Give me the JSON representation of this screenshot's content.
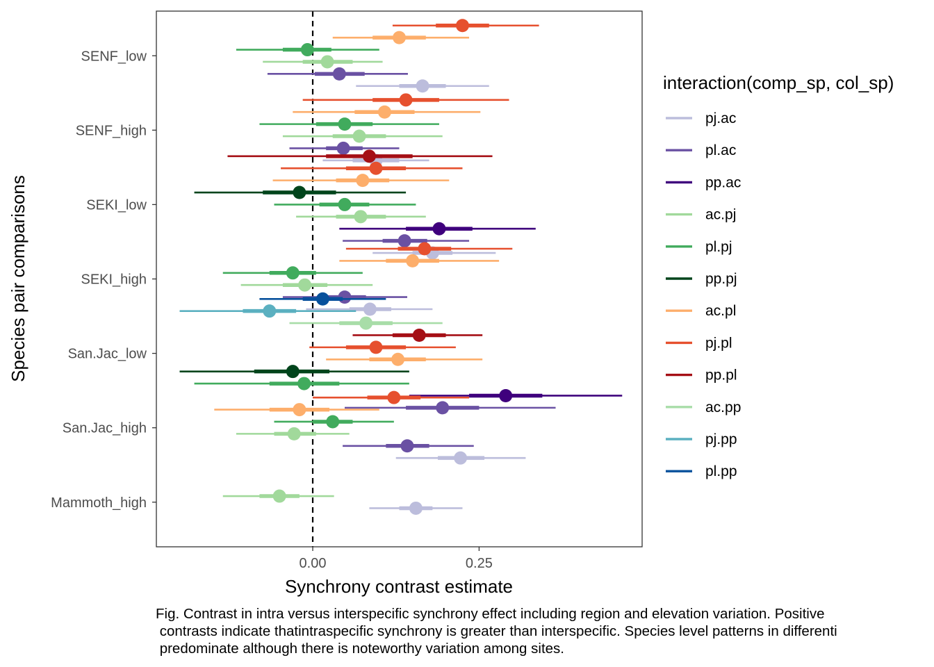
{
  "chart_data": {
    "type": "interval",
    "xlabel": "Synchrony contrast estimate",
    "ylabel": "Species pair comparisons",
    "xlim": [
      -0.235,
      0.495
    ],
    "x_ticks": [
      0.0,
      0.25
    ],
    "x_tick_labels": [
      "0.00",
      "0.25"
    ],
    "reference_line": {
      "x": 0,
      "style": "dashed"
    },
    "categories": [
      "SENF_low",
      "SENF_high",
      "SEKI_low",
      "SEKI_high",
      "San.Jac_low",
      "San.Jac_high",
      "Mammoth_high"
    ],
    "legend": {
      "title": "interaction(comp_sp, col_sp)",
      "placement": "right",
      "entries": [
        {
          "label": "pj.ac",
          "color": "#bcbddc"
        },
        {
          "label": "pl.ac",
          "color": "#6a51a3"
        },
        {
          "label": "pp.ac",
          "color": "#3f007d"
        },
        {
          "label": "ac.pj",
          "color": "#a1d99b"
        },
        {
          "label": "pl.pj",
          "color": "#41ab5d"
        },
        {
          "label": "pp.pj",
          "color": "#00441b"
        },
        {
          "label": "ac.pl",
          "color": "#fdae6b"
        },
        {
          "label": "pj.pl",
          "color": "#e6502e"
        },
        {
          "label": "pp.pl",
          "color": "#a50f15"
        },
        {
          "label": "ac.pp",
          "color": "#a8dda8"
        },
        {
          "label": "pj.pp",
          "color": "#5bb0c0"
        },
        {
          "label": "pl.pp",
          "color": "#08519c"
        }
      ]
    },
    "series": [
      {
        "category": "SENF_low",
        "group": "pj.pl",
        "estimate": 0.225,
        "inner": [
          0.185,
          0.265
        ],
        "outer": [
          0.12,
          0.34
        ]
      },
      {
        "category": "SENF_low",
        "group": "ac.pl",
        "estimate": 0.13,
        "inner": [
          0.09,
          0.17
        ],
        "outer": [
          0.03,
          0.235
        ]
      },
      {
        "category": "SENF_low",
        "group": "pl.pj",
        "estimate": -0.008,
        "inner": [
          -0.045,
          0.028
        ],
        "outer": [
          -0.115,
          0.1
        ]
      },
      {
        "category": "SENF_low",
        "group": "ac.pj",
        "estimate": 0.022,
        "inner": [
          -0.015,
          0.06
        ],
        "outer": [
          -0.075,
          0.105
        ]
      },
      {
        "category": "SENF_low",
        "group": "pl.ac",
        "estimate": 0.04,
        "inner": [
          0.003,
          0.078
        ],
        "outer": [
          -0.068,
          0.143
        ]
      },
      {
        "category": "SENF_low",
        "group": "pj.ac",
        "estimate": 0.165,
        "inner": [
          0.13,
          0.2
        ],
        "outer": [
          0.065,
          0.265
        ]
      },
      {
        "category": "SENF_high",
        "group": "pj.pl",
        "estimate": 0.14,
        "inner": [
          0.09,
          0.19
        ],
        "outer": [
          -0.015,
          0.295
        ]
      },
      {
        "category": "SENF_high",
        "group": "ac.pl",
        "estimate": 0.108,
        "inner": [
          0.063,
          0.153
        ],
        "outer": [
          -0.03,
          0.252
        ]
      },
      {
        "category": "SENF_high",
        "group": "pl.pj",
        "estimate": 0.048,
        "inner": [
          0.005,
          0.09
        ],
        "outer": [
          -0.08,
          0.19
        ]
      },
      {
        "category": "SENF_high",
        "group": "ac.pj",
        "estimate": 0.07,
        "inner": [
          0.03,
          0.11
        ],
        "outer": [
          -0.045,
          0.195
        ]
      },
      {
        "category": "SENF_high",
        "group": "pl.ac",
        "estimate": 0.046,
        "inner": [
          0.02,
          0.075
        ],
        "outer": [
          -0.035,
          0.13
        ]
      },
      {
        "category": "SENF_high",
        "group": "pj.ac",
        "estimate": 0.095,
        "inner": [
          0.06,
          0.13
        ],
        "outer": [
          0.015,
          0.175
        ]
      },
      {
        "category": "SEKI_low",
        "group": "pp.pl",
        "estimate": 0.085,
        "inner": [
          0.02,
          0.15
        ],
        "outer": [
          -0.128,
          0.27
        ]
      },
      {
        "category": "SEKI_low",
        "group": "pj.pl",
        "estimate": 0.095,
        "inner": [
          0.05,
          0.14
        ],
        "outer": [
          -0.048,
          0.225
        ]
      },
      {
        "category": "SEKI_low",
        "group": "ac.pl",
        "estimate": 0.075,
        "inner": [
          0.035,
          0.115
        ],
        "outer": [
          -0.06,
          0.205
        ]
      },
      {
        "category": "SEKI_low",
        "group": "pp.pj",
        "estimate": -0.02,
        "inner": [
          -0.075,
          0.035
        ],
        "outer": [
          -0.178,
          0.14
        ]
      },
      {
        "category": "SEKI_low",
        "group": "pl.pj",
        "estimate": 0.048,
        "inner": [
          0.01,
          0.085
        ],
        "outer": [
          -0.058,
          0.155
        ]
      },
      {
        "category": "SEKI_low",
        "group": "ac.pj",
        "estimate": 0.072,
        "inner": [
          0.035,
          0.11
        ],
        "outer": [
          -0.025,
          0.17
        ]
      },
      {
        "category": "SEKI_low",
        "group": "pp.ac",
        "estimate": 0.19,
        "inner": [
          0.14,
          0.24
        ],
        "outer": [
          0.04,
          0.335
        ]
      },
      {
        "category": "SEKI_low",
        "group": "pl.ac",
        "estimate": 0.138,
        "inner": [
          0.105,
          0.172
        ],
        "outer": [
          0.045,
          0.235
        ]
      },
      {
        "category": "SEKI_low",
        "group": "pj.ac",
        "estimate": 0.18,
        "inner": [
          0.15,
          0.21
        ],
        "outer": [
          0.09,
          0.275
        ]
      },
      {
        "category": "SEKI_high",
        "group": "pj.pl",
        "estimate": 0.168,
        "inner": [
          0.128,
          0.208
        ],
        "outer": [
          0.05,
          0.3
        ]
      },
      {
        "category": "SEKI_high",
        "group": "ac.pl",
        "estimate": 0.15,
        "inner": [
          0.11,
          0.19
        ],
        "outer": [
          0.04,
          0.28
        ]
      },
      {
        "category": "SEKI_high",
        "group": "pl.pj",
        "estimate": -0.03,
        "inner": [
          -0.065,
          0.005
        ],
        "outer": [
          -0.135,
          0.075
        ]
      },
      {
        "category": "SEKI_high",
        "group": "ac.pj",
        "estimate": -0.012,
        "inner": [
          -0.045,
          0.022
        ],
        "outer": [
          -0.108,
          0.09
        ]
      },
      {
        "category": "SEKI_high",
        "group": "pl.ac",
        "estimate": 0.048,
        "inner": [
          0.018,
          0.08
        ],
        "outer": [
          -0.045,
          0.142
        ]
      },
      {
        "category": "SEKI_high",
        "group": "pj.ac",
        "estimate": 0.086,
        "inner": [
          0.055,
          0.118
        ],
        "outer": [
          -0.01,
          0.18
        ]
      },
      {
        "category": "San.Jac_low",
        "group": "pl.pp",
        "estimate": 0.015,
        "inner": [
          -0.015,
          0.045
        ],
        "outer": [
          -0.08,
          0.11
        ]
      },
      {
        "category": "San.Jac_low",
        "group": "pj.pp",
        "estimate": -0.065,
        "inner": [
          -0.105,
          -0.025
        ],
        "outer": [
          -0.2,
          0.065
        ]
      },
      {
        "category": "San.Jac_low",
        "group": "ac.pp",
        "estimate": 0.08,
        "inner": [
          0.04,
          0.12
        ],
        "outer": [
          -0.035,
          0.195
        ]
      },
      {
        "category": "San.Jac_low",
        "group": "pp.pl",
        "estimate": 0.16,
        "inner": [
          0.12,
          0.2
        ],
        "outer": [
          0.06,
          0.255
        ]
      },
      {
        "category": "San.Jac_low",
        "group": "pj.pl",
        "estimate": 0.095,
        "inner": [
          0.05,
          0.14
        ],
        "outer": [
          -0.005,
          0.215
        ]
      },
      {
        "category": "San.Jac_low",
        "group": "ac.pl",
        "estimate": 0.128,
        "inner": [
          0.085,
          0.17
        ],
        "outer": [
          0.02,
          0.255
        ]
      },
      {
        "category": "San.Jac_low",
        "group": "pp.pj",
        "estimate": -0.03,
        "inner": [
          -0.088,
          0.025
        ],
        "outer": [
          -0.2,
          0.145
        ]
      },
      {
        "category": "San.Jac_low",
        "group": "pl.pj",
        "estimate": -0.013,
        "inner": [
          -0.065,
          0.04
        ],
        "outer": [
          -0.178,
          0.145
        ]
      },
      {
        "category": "San.Jac_low",
        "group": "pp.ac",
        "estimate": 0.29,
        "inner": [
          0.235,
          0.345
        ],
        "outer": [
          0.145,
          0.465
        ]
      },
      {
        "category": "San.Jac_low",
        "group": "pl.ac",
        "estimate": 0.195,
        "inner": [
          0.14,
          0.25
        ],
        "outer": [
          0.048,
          0.365
        ]
      },
      {
        "category": "San.Jac_high",
        "group": "pj.pl",
        "estimate": 0.122,
        "inner": [
          0.082,
          0.162
        ],
        "outer": [
          0.0,
          0.235
        ]
      },
      {
        "category": "San.Jac_high",
        "group": "ac.pl",
        "estimate": -0.02,
        "inner": [
          -0.065,
          0.025
        ],
        "outer": [
          -0.148,
          0.1
        ]
      },
      {
        "category": "San.Jac_high",
        "group": "pl.pj",
        "estimate": 0.03,
        "inner": [
          0.0,
          0.06
        ],
        "outer": [
          -0.058,
          0.122
        ]
      },
      {
        "category": "San.Jac_high",
        "group": "ac.pj",
        "estimate": -0.028,
        "inner": [
          -0.058,
          0.005
        ],
        "outer": [
          -0.115,
          0.055
        ]
      },
      {
        "category": "San.Jac_high",
        "group": "pl.ac",
        "estimate": 0.142,
        "inner": [
          0.11,
          0.175
        ],
        "outer": [
          0.045,
          0.242
        ]
      },
      {
        "category": "San.Jac_high",
        "group": "pj.ac",
        "estimate": 0.222,
        "inner": [
          0.188,
          0.258
        ],
        "outer": [
          0.125,
          0.32
        ]
      },
      {
        "category": "Mammoth_high",
        "group": "ac.pj",
        "estimate": -0.05,
        "inner": [
          -0.08,
          -0.02
        ],
        "outer": [
          -0.135,
          0.032
        ]
      },
      {
        "category": "Mammoth_high",
        "group": "pj.ac",
        "estimate": 0.155,
        "inner": [
          0.13,
          0.18
        ],
        "outer": [
          0.085,
          0.225
        ]
      }
    ]
  },
  "caption": {
    "line1": "Fig. Contrast in intra versus interspecific synchrony effect including region and elevation variation. Positive",
    "line2": " contrasts indicate thatintraspecific synchrony is greater than interspecific. Species level patterns in differenti",
    "line3": " predominate although there is noteworthy variation among sites."
  }
}
